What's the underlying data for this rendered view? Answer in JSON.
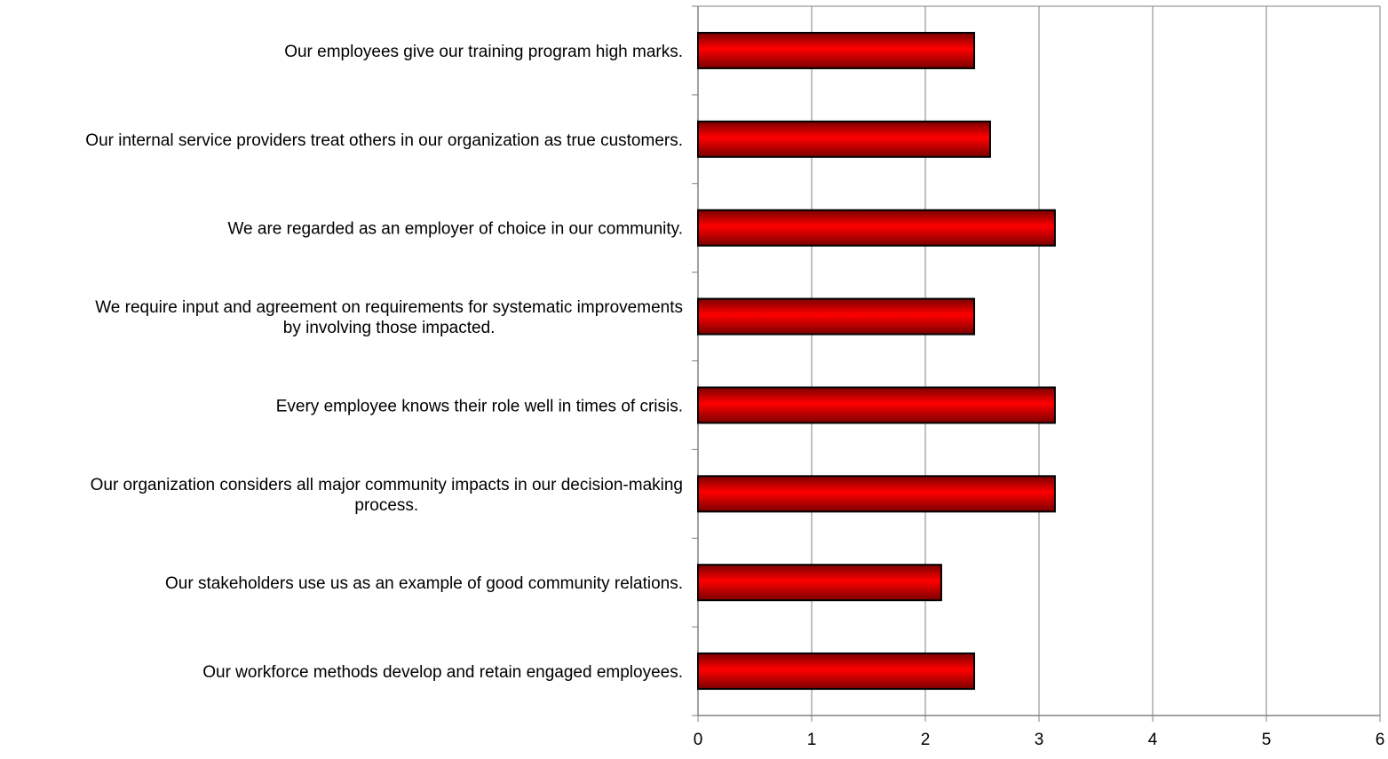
{
  "chart_data": {
    "type": "bar",
    "orientation": "horizontal",
    "categories": [
      "Our employees give our training program high marks.",
      "Our internal service providers treat others in our organization as true customers.",
      "We are regarded as an employer of choice in our community.",
      "We require input and agreement on requirements for systematic improvements by involving those impacted.",
      "Every employee knows their role well in times of crisis.",
      "Our organization considers all major community impacts in our decision-making process.",
      "Our stakeholders use us as an example of good community relations.",
      "Our workforce methods develop and retain engaged employees."
    ],
    "category_label_lines": [
      [
        "Our employees give our training program high marks."
      ],
      [
        "Our internal service providers treat others in our organization as true customers."
      ],
      [
        "We are regarded as an employer of choice in our community."
      ],
      [
        "We require input and agreement on requirements for systematic improvements",
        "by involving those impacted."
      ],
      [
        "Every employee knows their role well in times of crisis."
      ],
      [
        "Our organization considers all major community impacts in our decision-making",
        "process."
      ],
      [
        "Our stakeholders use us as an example of good community relations."
      ],
      [
        "Our workforce methods develop and retain engaged employees."
      ]
    ],
    "values": [
      2.43,
      2.57,
      3.14,
      2.43,
      3.14,
      3.14,
      2.14,
      2.43
    ],
    "xlim": [
      0,
      6
    ],
    "xticks": [
      "0",
      "1",
      "2",
      "3",
      "4",
      "5",
      "6"
    ],
    "xlabel": "",
    "ylabel": "",
    "title": "",
    "grid": "vertical",
    "legend": "none",
    "colors": {
      "bar_fill_light": "#ff0000",
      "bar_fill_dark": "#7a0000",
      "bar_outline": "#000000",
      "grid": "#808080",
      "axis": "#808080"
    }
  }
}
